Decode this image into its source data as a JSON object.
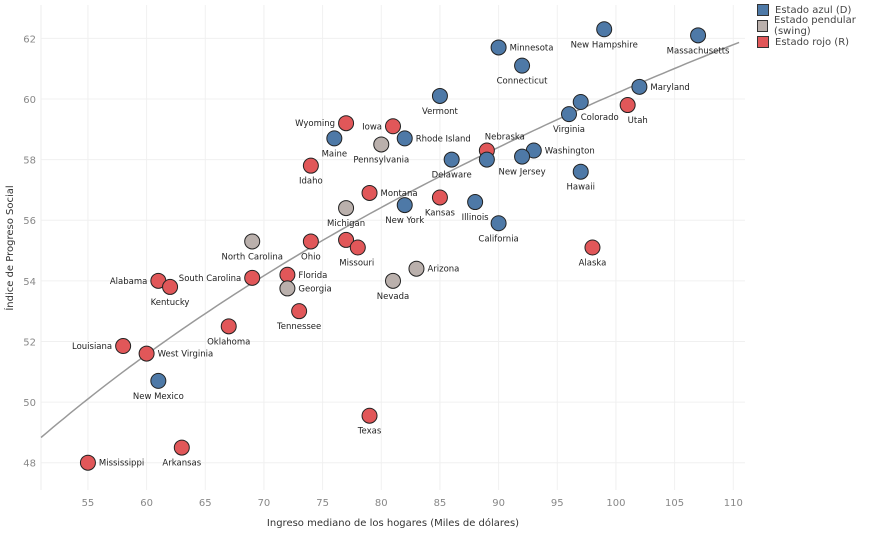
{
  "chart_data": {
    "type": "scatter",
    "title": "",
    "xlabel": "Ingreso mediano de los hogares (Miles de dólares)",
    "ylabel": "Índice de Progreso Social",
    "xlim": [
      51,
      111
    ],
    "ylim": [
      47.1,
      63.1
    ],
    "xticks": [
      55,
      60,
      65,
      70,
      75,
      80,
      85,
      90,
      95,
      100,
      105,
      110
    ],
    "yticks": [
      48,
      50,
      52,
      54,
      56,
      58,
      60,
      62
    ],
    "grid": true,
    "legend_position": "top-right",
    "series": [
      {
        "key": "D",
        "name": "Estado azul (D)",
        "color": "#4e79a7"
      },
      {
        "key": "S",
        "name": "Estado pendular (swing)",
        "color": "#bab0ac"
      },
      {
        "key": "R",
        "name": "Estado rojo (R)",
        "color": "#e15759"
      }
    ],
    "trendline": {
      "type": "logarithmic",
      "color": "#999999"
    },
    "points": [
      {
        "label": "New Hampshire",
        "x": 99,
        "y": 62.3,
        "group": "D",
        "anchor": "below"
      },
      {
        "label": "Massachusetts",
        "x": 107,
        "y": 62.1,
        "group": "D",
        "anchor": "below"
      },
      {
        "label": "Minnesota",
        "x": 90,
        "y": 61.7,
        "group": "D",
        "anchor": "right"
      },
      {
        "label": "Connecticut",
        "x": 92,
        "y": 61.1,
        "group": "D",
        "anchor": "below"
      },
      {
        "label": "Maryland",
        "x": 102,
        "y": 60.4,
        "group": "D",
        "anchor": "right"
      },
      {
        "label": "Vermont",
        "x": 85,
        "y": 60.1,
        "group": "D",
        "anchor": "below"
      },
      {
        "label": "Colorado",
        "x": 97,
        "y": 59.9,
        "group": "D",
        "anchor": "belowright"
      },
      {
        "label": "Utah",
        "x": 101,
        "y": 59.8,
        "group": "R",
        "anchor": "belowright"
      },
      {
        "label": "Virginia",
        "x": 96,
        "y": 59.5,
        "group": "D",
        "anchor": "below"
      },
      {
        "label": "Wyoming",
        "x": 77,
        "y": 59.2,
        "group": "R",
        "anchor": "left"
      },
      {
        "label": "Iowa",
        "x": 81,
        "y": 59.1,
        "group": "R",
        "anchor": "left"
      },
      {
        "label": "Rhode Island",
        "x": 82,
        "y": 58.7,
        "group": "D",
        "anchor": "right"
      },
      {
        "label": "Maine",
        "x": 76,
        "y": 58.7,
        "group": "D",
        "anchor": "below"
      },
      {
        "label": "Pennsylvania",
        "x": 80,
        "y": 58.5,
        "group": "S",
        "anchor": "below"
      },
      {
        "label": "Nebraska",
        "x": 89,
        "y": 58.3,
        "group": "R",
        "anchor": "above"
      },
      {
        "label": "",
        "x": 89,
        "y": 58.0,
        "group": "D",
        "anchor": "right"
      },
      {
        "label": "Washington",
        "x": 93,
        "y": 58.3,
        "group": "D",
        "anchor": "right"
      },
      {
        "label": "Delaware",
        "x": 86,
        "y": 58.0,
        "group": "D",
        "anchor": "below"
      },
      {
        "label": "New Jersey",
        "x": 92,
        "y": 58.1,
        "group": "D",
        "anchor": "below"
      },
      {
        "label": "Idaho",
        "x": 74,
        "y": 57.8,
        "group": "R",
        "anchor": "below"
      },
      {
        "label": "Hawaii",
        "x": 97,
        "y": 57.6,
        "group": "D",
        "anchor": "below"
      },
      {
        "label": "Montana",
        "x": 79,
        "y": 56.9,
        "group": "R",
        "anchor": "right"
      },
      {
        "label": "Kansas",
        "x": 85,
        "y": 56.75,
        "group": "R",
        "anchor": "below"
      },
      {
        "label": "Illinois",
        "x": 88,
        "y": 56.6,
        "group": "D",
        "anchor": "below"
      },
      {
        "label": "New York",
        "x": 82,
        "y": 56.5,
        "group": "D",
        "anchor": "below"
      },
      {
        "label": "Michigan",
        "x": 77,
        "y": 56.4,
        "group": "S",
        "anchor": "below"
      },
      {
        "label": "California",
        "x": 90,
        "y": 55.9,
        "group": "D",
        "anchor": "below"
      },
      {
        "label": "North Carolina",
        "x": 69,
        "y": 55.3,
        "group": "S",
        "anchor": "below"
      },
      {
        "label": "Ohio",
        "x": 74,
        "y": 55.3,
        "group": "R",
        "anchor": "below"
      },
      {
        "label": "",
        "x": 77,
        "y": 55.35,
        "group": "R",
        "anchor": "below"
      },
      {
        "label": "Missouri",
        "x": 78,
        "y": 55.1,
        "group": "R",
        "anchor": "belowleft"
      },
      {
        "label": "Alaska",
        "x": 98,
        "y": 55.1,
        "group": "R",
        "anchor": "below"
      },
      {
        "label": "Arizona",
        "x": 83,
        "y": 54.4,
        "group": "S",
        "anchor": "right"
      },
      {
        "label": "Florida",
        "x": 72,
        "y": 54.2,
        "group": "R",
        "anchor": "right"
      },
      {
        "label": "South Carolina",
        "x": 69,
        "y": 54.1,
        "group": "R",
        "anchor": "left"
      },
      {
        "label": "Alabama",
        "x": 61,
        "y": 54.0,
        "group": "R",
        "anchor": "left"
      },
      {
        "label": "Nevada",
        "x": 81,
        "y": 54.0,
        "group": "S",
        "anchor": "below"
      },
      {
        "label": "Kentucky",
        "x": 62,
        "y": 53.8,
        "group": "R",
        "anchor": "below"
      },
      {
        "label": "Georgia",
        "x": 72,
        "y": 53.75,
        "group": "S",
        "anchor": "right"
      },
      {
        "label": "Tennessee",
        "x": 73,
        "y": 53.0,
        "group": "R",
        "anchor": "below"
      },
      {
        "label": "Oklahoma",
        "x": 67,
        "y": 52.5,
        "group": "R",
        "anchor": "below"
      },
      {
        "label": "Louisiana",
        "x": 58,
        "y": 51.85,
        "group": "R",
        "anchor": "left"
      },
      {
        "label": "West Virginia",
        "x": 60,
        "y": 51.6,
        "group": "R",
        "anchor": "right"
      },
      {
        "label": "New Mexico",
        "x": 61,
        "y": 50.7,
        "group": "D",
        "anchor": "below"
      },
      {
        "label": "Texas",
        "x": 79,
        "y": 49.55,
        "group": "R",
        "anchor": "below"
      },
      {
        "label": "Arkansas",
        "x": 63,
        "y": 48.5,
        "group": "R",
        "anchor": "below"
      },
      {
        "label": "Mississippi",
        "x": 55,
        "y": 48.0,
        "group": "R",
        "anchor": "right"
      }
    ]
  }
}
